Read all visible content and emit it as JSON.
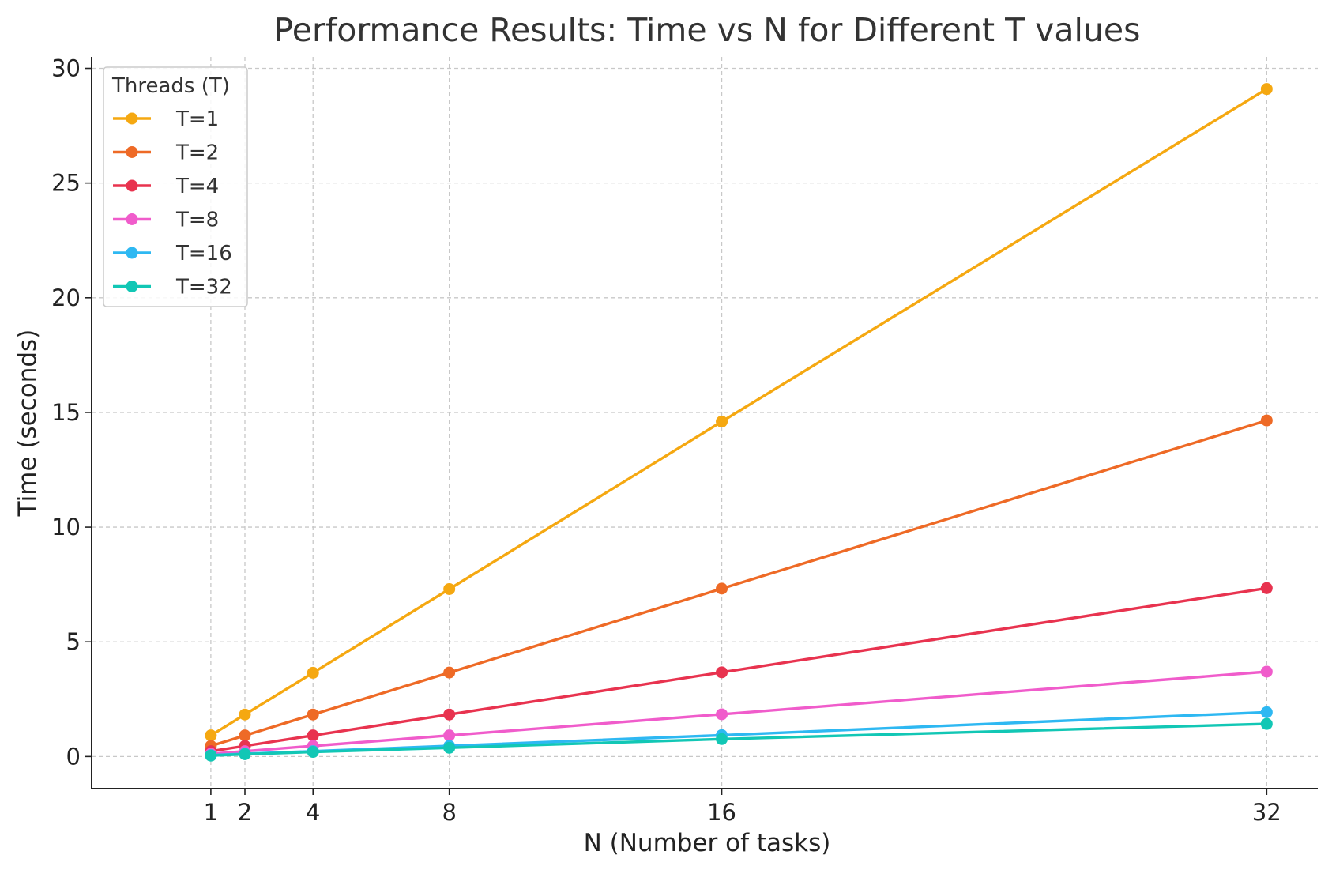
{
  "chart_data": {
    "type": "line",
    "title": "Performance Results: Time vs N for Different T values",
    "xlabel": "N (Number of tasks)",
    "ylabel": "Time (seconds)",
    "x": [
      1,
      2,
      4,
      8,
      16,
      32
    ],
    "x_tick_labels": [
      "1",
      "2",
      "4",
      "8",
      "16",
      "32"
    ],
    "xlim": [
      -2.5,
      33.5
    ],
    "ylim": [
      -1.4,
      30.5
    ],
    "y_ticks": [
      0,
      5,
      10,
      15,
      20,
      25,
      30
    ],
    "y_tick_labels": [
      "0",
      "5",
      "10",
      "15",
      "20",
      "25",
      "30"
    ],
    "grid": true,
    "legend": {
      "title": "Threads (T)",
      "placement": "top-left"
    },
    "series": [
      {
        "name": "T=1",
        "color": "#F5A811",
        "values": [
          0.92,
          1.83,
          3.65,
          7.3,
          14.6,
          29.1
        ]
      },
      {
        "name": "T=2",
        "color": "#EE6A26",
        "values": [
          0.46,
          0.92,
          1.83,
          3.66,
          7.32,
          14.65
        ]
      },
      {
        "name": "T=4",
        "color": "#E8334F",
        "values": [
          0.23,
          0.46,
          0.92,
          1.83,
          3.67,
          7.34
        ]
      },
      {
        "name": "T=8",
        "color": "#F05CCB",
        "values": [
          0.12,
          0.23,
          0.46,
          0.92,
          1.84,
          3.7
        ]
      },
      {
        "name": "T=16",
        "color": "#2EB8F2",
        "values": [
          0.06,
          0.12,
          0.23,
          0.46,
          0.93,
          1.93
        ]
      },
      {
        "name": "T=32",
        "color": "#12C7B5",
        "values": [
          0.04,
          0.1,
          0.2,
          0.38,
          0.76,
          1.42
        ]
      }
    ]
  }
}
